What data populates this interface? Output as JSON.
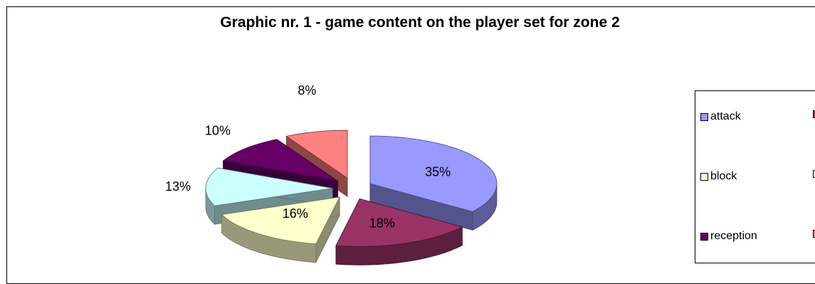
{
  "chart_data": {
    "type": "pie",
    "title": "Graphic nr. 1 - game content on the player set for zone 2",
    "slices": [
      {
        "label": "attack",
        "value": 35,
        "label_text": "35%",
        "color": "#9999FF"
      },
      {
        "label": "",
        "value": 18,
        "label_text": "18%",
        "color": "#993366"
      },
      {
        "label": "block",
        "value": 16,
        "label_text": "16%",
        "color": "#FFFFCC"
      },
      {
        "label": "",
        "value": 13,
        "label_text": "13%",
        "color": "#CCFFFF"
      },
      {
        "label": "reception",
        "value": 10,
        "label_text": "10%",
        "color": "#660066"
      },
      {
        "label": "",
        "value": 8,
        "label_text": "8%",
        "color": "#FF8080"
      }
    ],
    "legend_position": "right",
    "style": "3d-exploded"
  }
}
